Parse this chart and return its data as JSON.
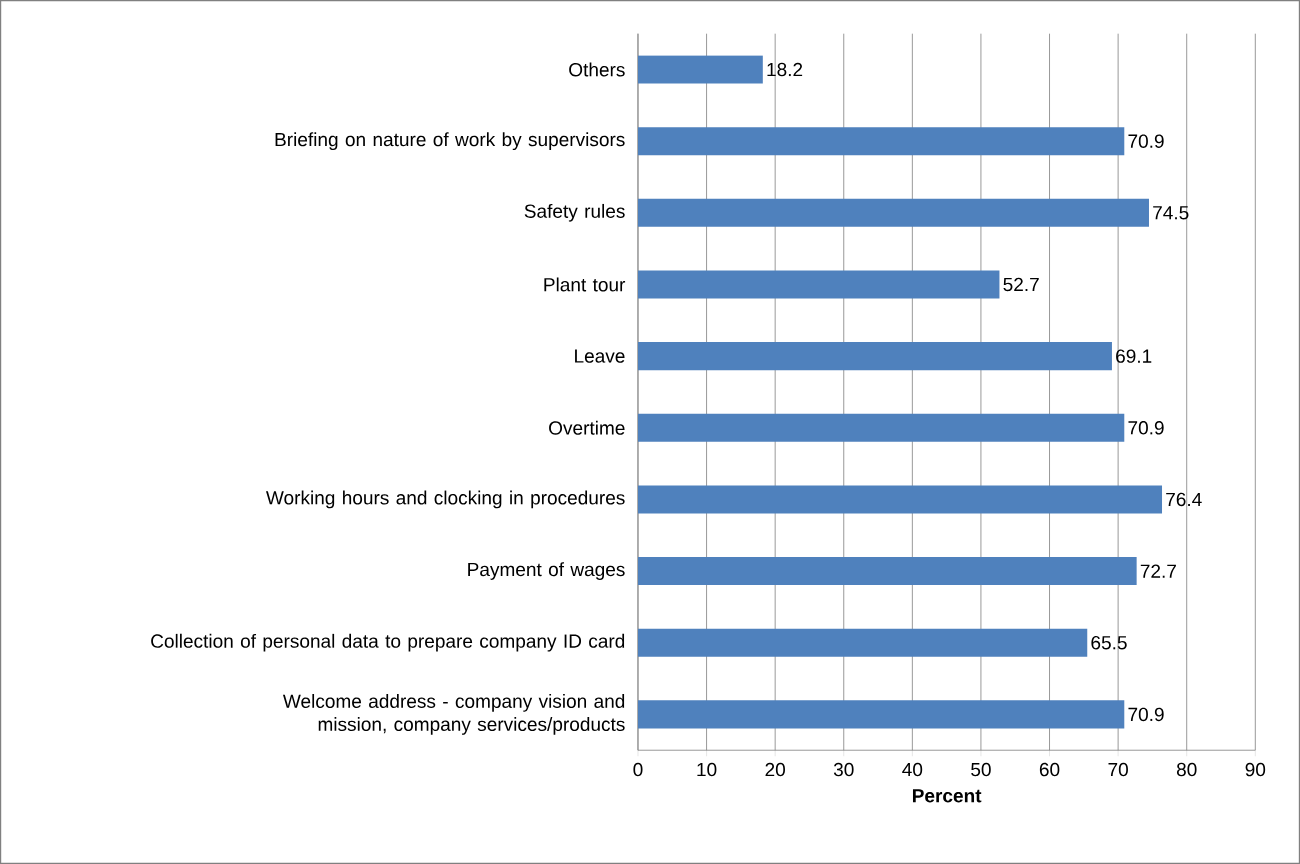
{
  "chart_data": {
    "type": "bar",
    "orientation": "horizontal",
    "xlabel": "Percent",
    "categories": [
      "Others",
      "Briefing on nature of work by supervisors",
      "Safety rules",
      "Plant tour",
      "Leave",
      "Overtime",
      "Working hours and clocking in procedures",
      "Payment of wages",
      "Collection of personal data to prepare company ID card",
      "Welcome address - company vision and mission, company services/products"
    ],
    "values": [
      18.2,
      70.9,
      74.5,
      52.7,
      69.1,
      70.9,
      76.4,
      72.7,
      65.5,
      70.9
    ],
    "color": "#4f81bd",
    "data_labels": true,
    "grid": "x",
    "xlim": [
      0,
      90
    ],
    "xticks": [
      0,
      10,
      20,
      30,
      40,
      50,
      60,
      70,
      80,
      90
    ]
  }
}
